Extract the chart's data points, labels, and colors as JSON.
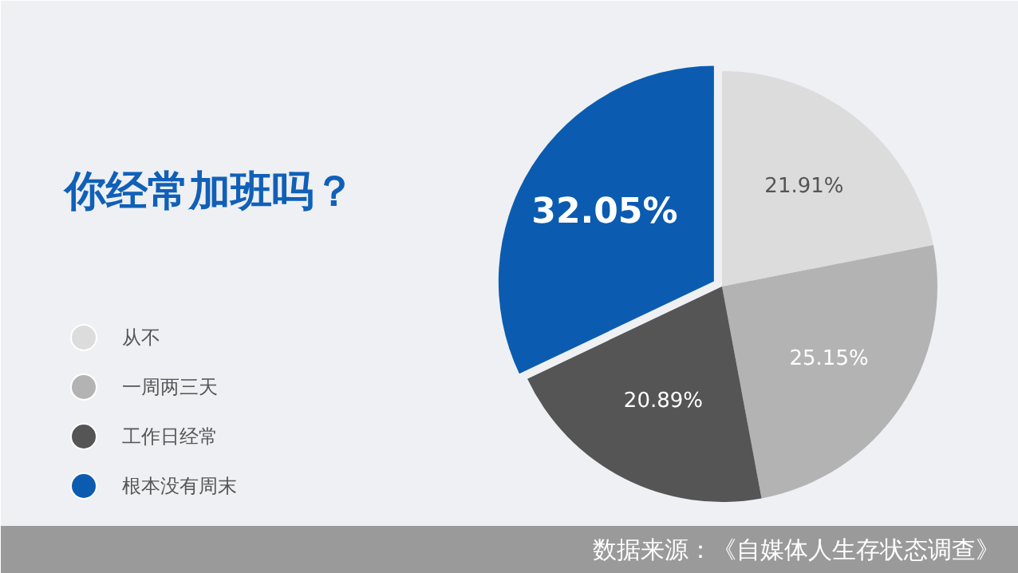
{
  "chart_data": {
    "type": "pie",
    "title": "你经常加班吗？",
    "categories": [
      "从不",
      "一周两三天",
      "工作日经常",
      "根本没有周末"
    ],
    "values": [
      21.91,
      25.15,
      20.89,
      32.05
    ],
    "colors": [
      "#dcdcdc",
      "#b3b3b3",
      "#555555",
      "#0b5cb0"
    ],
    "value_labels": [
      "21.91%",
      "25.15%",
      "20.89%",
      "32.05%"
    ],
    "legend": "left",
    "annotations": [
      "数据来源：《自媒体人生存状态调查》"
    ]
  }
}
